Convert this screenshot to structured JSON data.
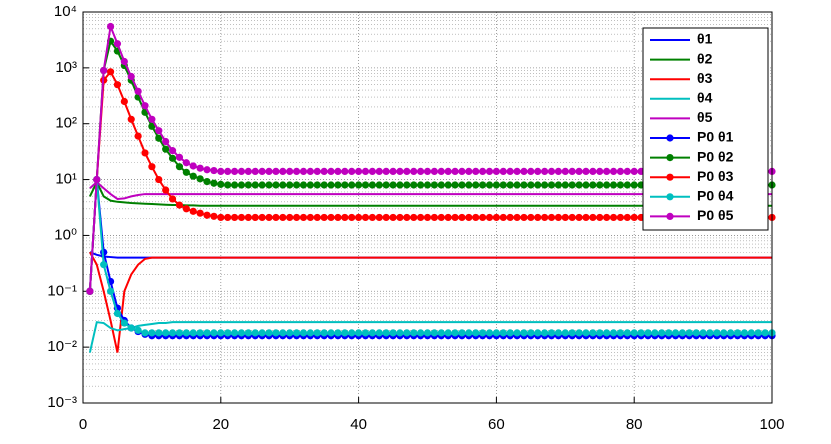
{
  "chart_data": {
    "type": "line",
    "x": [
      1,
      2,
      3,
      4,
      5,
      6,
      7,
      8,
      9,
      10,
      11,
      12,
      13,
      14,
      15,
      16,
      17,
      18,
      19,
      20,
      21,
      22,
      23,
      24,
      25,
      26,
      27,
      28,
      29,
      30,
      31,
      32,
      33,
      34,
      35,
      36,
      37,
      38,
      39,
      40,
      41,
      42,
      43,
      44,
      45,
      46,
      47,
      48,
      49,
      50,
      51,
      52,
      53,
      54,
      55,
      56,
      57,
      58,
      59,
      60,
      61,
      62,
      63,
      64,
      65,
      66,
      67,
      68,
      69,
      70,
      71,
      72,
      73,
      74,
      75,
      76,
      77,
      78,
      79,
      80,
      81,
      82,
      83,
      84,
      85,
      86,
      87,
      88,
      89,
      90,
      91,
      92,
      93,
      94,
      95,
      96,
      97,
      98,
      99,
      100
    ],
    "series": [
      {
        "name": "θ1",
        "color": "#0000ff",
        "values": [
          0.5,
          0.45,
          0.42,
          0.41,
          0.4,
          0.4,
          0.4,
          0.4,
          0.4,
          0.4,
          0.4,
          0.4,
          0.4,
          0.4,
          0.4,
          0.4,
          0.4,
          0.4,
          0.4,
          0.4,
          0.4,
          0.4,
          0.4,
          0.4,
          0.4,
          0.4,
          0.4,
          0.4,
          0.4,
          0.4,
          0.4,
          0.4,
          0.4,
          0.4,
          0.4,
          0.4,
          0.4,
          0.4,
          0.4,
          0.4,
          0.4,
          0.4,
          0.4,
          0.4,
          0.4,
          0.4,
          0.4,
          0.4,
          0.4,
          0.4,
          0.4,
          0.4,
          0.4,
          0.4,
          0.4,
          0.4,
          0.4,
          0.4,
          0.4,
          0.4,
          0.4,
          0.4,
          0.4,
          0.4,
          0.4,
          0.4,
          0.4,
          0.4,
          0.4,
          0.4,
          0.4,
          0.4,
          0.4,
          0.4,
          0.4,
          0.4,
          0.4,
          0.4,
          0.4,
          0.4,
          0.4,
          0.4,
          0.4,
          0.4,
          0.4,
          0.4,
          0.4,
          0.4,
          0.4,
          0.4,
          0.4,
          0.4,
          0.4,
          0.4,
          0.4,
          0.4,
          0.4,
          0.4,
          0.4,
          0.4
        ]
      },
      {
        "name": "θ2",
        "color": "#008000",
        "values": [
          5,
          9,
          5,
          4.2,
          4,
          3.9,
          3.8,
          3.75,
          3.7,
          3.65,
          3.6,
          3.55,
          3.5,
          3.5,
          3.45,
          3.45,
          3.4,
          3.4,
          3.4,
          3.4,
          3.4,
          3.4,
          3.4,
          3.4,
          3.4,
          3.4,
          3.4,
          3.4,
          3.4,
          3.4,
          3.4,
          3.4,
          3.4,
          3.4,
          3.4,
          3.4,
          3.4,
          3.4,
          3.4,
          3.4,
          3.4,
          3.4,
          3.4,
          3.4,
          3.4,
          3.4,
          3.4,
          3.4,
          3.4,
          3.4,
          3.4,
          3.4,
          3.4,
          3.4,
          3.4,
          3.4,
          3.4,
          3.4,
          3.4,
          3.4,
          3.4,
          3.4,
          3.4,
          3.4,
          3.4,
          3.4,
          3.4,
          3.4,
          3.4,
          3.4,
          3.4,
          3.4,
          3.4,
          3.4,
          3.4,
          3.4,
          3.4,
          3.4,
          3.4,
          3.4,
          3.4,
          3.4,
          3.4,
          3.4,
          3.4,
          3.4,
          3.4,
          3.4,
          3.4,
          3.4,
          3.4,
          3.4,
          3.4,
          3.4,
          3.4,
          3.4,
          3.4,
          3.4,
          3.4,
          3.4
        ]
      },
      {
        "name": "θ3",
        "color": "#ff0000",
        "values": [
          0.5,
          0.3,
          0.1,
          0.03,
          0.008,
          0.1,
          0.2,
          0.3,
          0.38,
          0.4,
          0.4,
          0.4,
          0.4,
          0.4,
          0.4,
          0.4,
          0.4,
          0.4,
          0.4,
          0.4,
          0.4,
          0.4,
          0.4,
          0.4,
          0.4,
          0.4,
          0.4,
          0.4,
          0.4,
          0.4,
          0.4,
          0.4,
          0.4,
          0.4,
          0.4,
          0.4,
          0.4,
          0.4,
          0.4,
          0.4,
          0.4,
          0.4,
          0.4,
          0.4,
          0.4,
          0.4,
          0.4,
          0.4,
          0.4,
          0.4,
          0.4,
          0.4,
          0.4,
          0.4,
          0.4,
          0.4,
          0.4,
          0.4,
          0.4,
          0.4,
          0.4,
          0.4,
          0.4,
          0.4,
          0.4,
          0.4,
          0.4,
          0.4,
          0.4,
          0.4,
          0.4,
          0.4,
          0.4,
          0.4,
          0.4,
          0.4,
          0.4,
          0.4,
          0.4,
          0.4,
          0.4,
          0.4,
          0.4,
          0.4,
          0.4,
          0.4,
          0.4,
          0.4,
          0.4,
          0.4,
          0.4,
          0.4,
          0.4,
          0.4,
          0.4,
          0.4,
          0.4,
          0.4,
          0.4,
          0.4
        ]
      },
      {
        "name": "θ4",
        "color": "#00bfbf",
        "values": [
          0.008,
          0.028,
          0.027,
          0.022,
          0.02,
          0.021,
          0.022,
          0.024,
          0.025,
          0.026,
          0.027,
          0.027,
          0.028,
          0.028,
          0.028,
          0.028,
          0.028,
          0.028,
          0.028,
          0.028,
          0.028,
          0.028,
          0.028,
          0.028,
          0.028,
          0.028,
          0.028,
          0.028,
          0.028,
          0.028,
          0.028,
          0.028,
          0.028,
          0.028,
          0.028,
          0.028,
          0.028,
          0.028,
          0.028,
          0.028,
          0.028,
          0.028,
          0.028,
          0.028,
          0.028,
          0.028,
          0.028,
          0.028,
          0.028,
          0.028,
          0.028,
          0.028,
          0.028,
          0.028,
          0.028,
          0.028,
          0.028,
          0.028,
          0.028,
          0.028,
          0.028,
          0.028,
          0.028,
          0.028,
          0.028,
          0.028,
          0.028,
          0.028,
          0.028,
          0.028,
          0.028,
          0.028,
          0.028,
          0.028,
          0.028,
          0.028,
          0.028,
          0.028,
          0.028,
          0.028,
          0.028,
          0.028,
          0.028,
          0.028,
          0.028,
          0.028,
          0.028,
          0.028,
          0.028,
          0.028,
          0.028,
          0.028,
          0.028,
          0.028,
          0.028,
          0.028,
          0.028,
          0.028,
          0.028,
          0.028
        ]
      },
      {
        "name": "θ5",
        "color": "#bf00bf",
        "values": [
          7,
          9,
          7,
          5.5,
          4.5,
          4.6,
          5,
          5.3,
          5.5,
          5.5,
          5.5,
          5.5,
          5.5,
          5.5,
          5.5,
          5.5,
          5.5,
          5.5,
          5.5,
          5.5,
          5.5,
          5.5,
          5.5,
          5.5,
          5.5,
          5.5,
          5.5,
          5.5,
          5.5,
          5.5,
          5.5,
          5.5,
          5.5,
          5.5,
          5.5,
          5.5,
          5.5,
          5.5,
          5.5,
          5.5,
          5.5,
          5.5,
          5.5,
          5.5,
          5.5,
          5.5,
          5.5,
          5.5,
          5.5,
          5.5,
          5.5,
          5.5,
          5.5,
          5.5,
          5.5,
          5.5,
          5.5,
          5.5,
          5.5,
          5.5,
          5.5,
          5.5,
          5.5,
          5.5,
          5.5,
          5.5,
          5.5,
          5.5,
          5.5,
          5.5,
          5.5,
          5.5,
          5.5,
          5.5,
          5.5,
          5.5,
          5.5,
          5.5,
          5.5,
          5.5,
          5.5,
          5.5,
          5.5,
          5.5,
          5.5,
          5.5,
          5.5,
          5.5,
          5.5,
          5.5,
          5.5,
          5.5,
          5.5,
          5.5,
          5.5,
          5.5,
          5.5,
          5.5,
          5.5,
          5.5
        ]
      },
      {
        "name": "P0 θ1",
        "color": "#0000ff",
        "marker": "o",
        "values": [
          0.1,
          10,
          0.5,
          0.15,
          0.05,
          0.03,
          0.022,
          0.019,
          0.017,
          0.016,
          0.016,
          0.016,
          0.016,
          0.016,
          0.016,
          0.016,
          0.016,
          0.016,
          0.016,
          0.016,
          0.016,
          0.016,
          0.016,
          0.016,
          0.016,
          0.016,
          0.016,
          0.016,
          0.016,
          0.016,
          0.016,
          0.016,
          0.016,
          0.016,
          0.016,
          0.016,
          0.016,
          0.016,
          0.016,
          0.016,
          0.016,
          0.016,
          0.016,
          0.016,
          0.016,
          0.016,
          0.016,
          0.016,
          0.016,
          0.016,
          0.016,
          0.016,
          0.016,
          0.016,
          0.016,
          0.016,
          0.016,
          0.016,
          0.016,
          0.016,
          0.016,
          0.016,
          0.016,
          0.016,
          0.016,
          0.016,
          0.016,
          0.016,
          0.016,
          0.016,
          0.016,
          0.016,
          0.016,
          0.016,
          0.016,
          0.016,
          0.016,
          0.016,
          0.016,
          0.016,
          0.016,
          0.016,
          0.016,
          0.016,
          0.016,
          0.016,
          0.016,
          0.016,
          0.016,
          0.016,
          0.016,
          0.016,
          0.016,
          0.016,
          0.016,
          0.016,
          0.016,
          0.016,
          0.016,
          0.016
        ]
      },
      {
        "name": "P0 θ2",
        "color": "#008000",
        "marker": "o",
        "values": [
          0.1,
          10,
          900,
          3000,
          2000,
          1100,
          600,
          300,
          160,
          90,
          55,
          35,
          24,
          17,
          13.5,
          11.5,
          10.3,
          9.2,
          8.6,
          8.2,
          8,
          8,
          8,
          8,
          8,
          8,
          8,
          8,
          8,
          8,
          8,
          8,
          8,
          8,
          8,
          8,
          8,
          8,
          8,
          8,
          8,
          8,
          8,
          8,
          8,
          8,
          8,
          8,
          8,
          8,
          8,
          8,
          8,
          8,
          8,
          8,
          8,
          8,
          8,
          8,
          8,
          8,
          8,
          8,
          8,
          8,
          8,
          8,
          8,
          8,
          8,
          8,
          8,
          8,
          8,
          8,
          8,
          8,
          8,
          8,
          8,
          8,
          8,
          8,
          8,
          8,
          8,
          8,
          8,
          8,
          8,
          8,
          8,
          8,
          8,
          8,
          8,
          8,
          8,
          8
        ]
      },
      {
        "name": "P0 θ3",
        "color": "#ff0000",
        "marker": "o",
        "values": [
          0.1,
          10,
          600,
          850,
          500,
          250,
          120,
          60,
          30,
          17,
          10,
          6.5,
          4.5,
          3.5,
          3,
          2.7,
          2.5,
          2.3,
          2.2,
          2.1,
          2.1,
          2.1,
          2.1,
          2.1,
          2.1,
          2.1,
          2.1,
          2.1,
          2.1,
          2.1,
          2.1,
          2.1,
          2.1,
          2.1,
          2.1,
          2.1,
          2.1,
          2.1,
          2.1,
          2.1,
          2.1,
          2.1,
          2.1,
          2.1,
          2.1,
          2.1,
          2.1,
          2.1,
          2.1,
          2.1,
          2.1,
          2.1,
          2.1,
          2.1,
          2.1,
          2.1,
          2.1,
          2.1,
          2.1,
          2.1,
          2.1,
          2.1,
          2.1,
          2.1,
          2.1,
          2.1,
          2.1,
          2.1,
          2.1,
          2.1,
          2.1,
          2.1,
          2.1,
          2.1,
          2.1,
          2.1,
          2.1,
          2.1,
          2.1,
          2.1,
          2.1,
          2.1,
          2.1,
          2.1,
          2.1,
          2.1,
          2.1,
          2.1,
          2.1,
          2.1,
          2.1,
          2.1,
          2.1,
          2.1,
          2.1,
          2.1,
          2.1,
          2.1,
          2.1,
          2.1
        ]
      },
      {
        "name": "P0 θ4",
        "color": "#00bfbf",
        "marker": "o",
        "values": [
          0.1,
          10,
          0.3,
          0.1,
          0.04,
          0.027,
          0.022,
          0.02,
          0.018,
          0.018,
          0.018,
          0.018,
          0.018,
          0.018,
          0.018,
          0.018,
          0.018,
          0.018,
          0.018,
          0.018,
          0.018,
          0.018,
          0.018,
          0.018,
          0.018,
          0.018,
          0.018,
          0.018,
          0.018,
          0.018,
          0.018,
          0.018,
          0.018,
          0.018,
          0.018,
          0.018,
          0.018,
          0.018,
          0.018,
          0.018,
          0.018,
          0.018,
          0.018,
          0.018,
          0.018,
          0.018,
          0.018,
          0.018,
          0.018,
          0.018,
          0.018,
          0.018,
          0.018,
          0.018,
          0.018,
          0.018,
          0.018,
          0.018,
          0.018,
          0.018,
          0.018,
          0.018,
          0.018,
          0.018,
          0.018,
          0.018,
          0.018,
          0.018,
          0.018,
          0.018,
          0.018,
          0.018,
          0.018,
          0.018,
          0.018,
          0.018,
          0.018,
          0.018,
          0.018,
          0.018,
          0.018,
          0.018,
          0.018,
          0.018,
          0.018,
          0.018,
          0.018,
          0.018,
          0.018,
          0.018,
          0.018,
          0.018,
          0.018,
          0.018,
          0.018,
          0.018,
          0.018,
          0.018,
          0.018,
          0.018
        ]
      },
      {
        "name": "P0 θ5",
        "color": "#bf00bf",
        "marker": "o",
        "values": [
          0.1,
          10,
          900,
          5500,
          2700,
          1300,
          700,
          380,
          210,
          120,
          75,
          48,
          33,
          25,
          20,
          17.5,
          16,
          15,
          14.5,
          14,
          14,
          14,
          14,
          14,
          14,
          14,
          14,
          14,
          14,
          14,
          14,
          14,
          14,
          14,
          14,
          14,
          14,
          14,
          14,
          14,
          14,
          14,
          14,
          14,
          14,
          14,
          14,
          14,
          14,
          14,
          14,
          14,
          14,
          14,
          14,
          14,
          14,
          14,
          14,
          14,
          14,
          14,
          14,
          14,
          14,
          14,
          14,
          14,
          14,
          14,
          14,
          14,
          14,
          14,
          14,
          14,
          14,
          14,
          14,
          14,
          14,
          14,
          14,
          14,
          14,
          14,
          14,
          14,
          14,
          14,
          14,
          14,
          14,
          14,
          14,
          14,
          14,
          14,
          14,
          14
        ]
      }
    ],
    "xlim": [
      0,
      100
    ],
    "xticks": [
      0,
      20,
      40,
      60,
      80,
      100
    ],
    "ylim": [
      0.001,
      10000
    ],
    "ylog": true,
    "yticks": [
      {
        "value": 0.001,
        "label": "10⁻³"
      },
      {
        "value": 0.01,
        "label": "10⁻²"
      },
      {
        "value": 0.1,
        "label": "10⁻¹"
      },
      {
        "value": 1,
        "label": "10⁰"
      },
      {
        "value": 10,
        "label": "10¹"
      },
      {
        "value": 100,
        "label": "10²"
      },
      {
        "value": 1000,
        "label": "10³"
      },
      {
        "value": 10000,
        "label": "10⁴"
      }
    ],
    "grid": true,
    "minor_grid": true,
    "legend": "upper right"
  }
}
